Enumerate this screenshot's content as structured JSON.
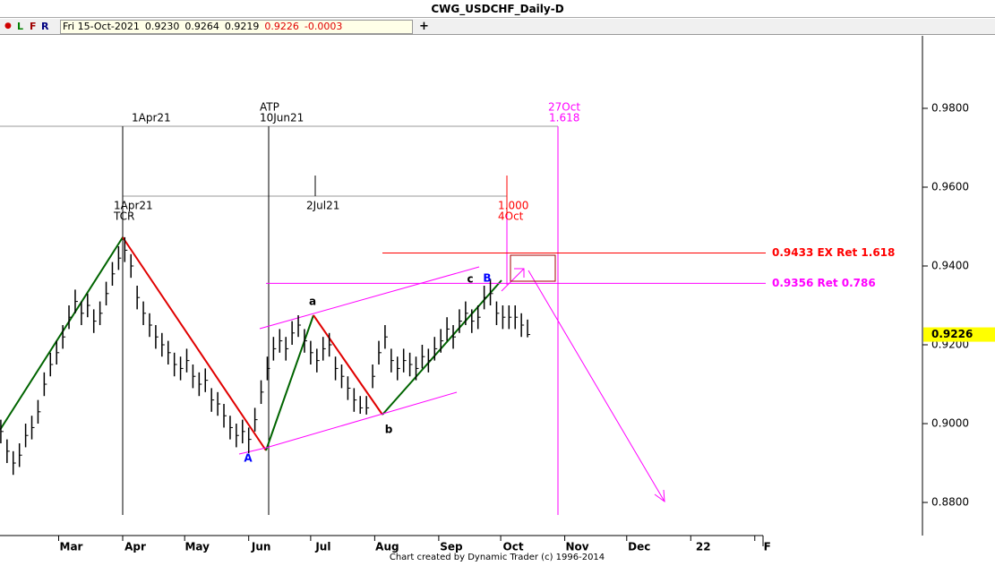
{
  "window_title": "CWG_USDCHF_Daily-D",
  "toolbar": {
    "letters": [
      "L",
      "F",
      "R"
    ],
    "quote": [
      "Fri 15-Oct-2021",
      "0.9230",
      "0.9264",
      "0.9219",
      "0.9226",
      "-0.0003"
    ]
  },
  "footer": "Chart created by Dynamic Trader  (c) 1996-2014",
  "chart_data": {
    "type": "ohlc",
    "color": "#000000",
    "x": [
      32,
      35,
      38,
      41,
      44,
      47,
      50,
      53,
      56,
      59,
      62,
      65,
      68,
      71,
      74,
      77,
      80,
      83,
      86,
      89,
      92,
      95,
      98,
      101,
      104,
      107,
      110,
      113,
      116,
      119,
      122,
      125,
      128,
      131,
      134,
      137,
      140,
      143,
      146,
      149,
      152,
      155,
      158,
      161,
      164,
      167,
      170,
      173,
      176,
      179,
      182,
      185,
      188,
      191,
      194,
      197,
      200,
      203,
      206,
      209,
      212,
      215,
      218,
      221,
      224,
      227,
      230,
      233,
      236,
      239,
      242,
      245,
      248,
      251,
      254,
      257,
      260,
      263,
      266,
      269,
      272,
      275,
      278,
      281,
      284,
      287
    ],
    "high": [
      0.901,
      0.896,
      0.893,
      0.895,
      0.9,
      0.902,
      0.906,
      0.913,
      0.918,
      0.921,
      0.925,
      0.93,
      0.934,
      0.931,
      0.933,
      0.929,
      0.931,
      0.936,
      0.941,
      0.945,
      0.9473,
      0.943,
      0.935,
      0.931,
      0.928,
      0.925,
      0.923,
      0.921,
      0.918,
      0.917,
      0.919,
      0.915,
      0.913,
      0.914,
      0.909,
      0.908,
      0.905,
      0.902,
      0.9,
      0.901,
      0.899,
      0.904,
      0.911,
      0.917,
      0.922,
      0.924,
      0.922,
      0.926,
      0.9275,
      0.924,
      0.921,
      0.919,
      0.922,
      0.923,
      0.917,
      0.915,
      0.912,
      0.909,
      0.907,
      0.907,
      0.915,
      0.921,
      0.925,
      0.919,
      0.917,
      0.919,
      0.918,
      0.917,
      0.92,
      0.919,
      0.922,
      0.924,
      0.927,
      0.925,
      0.929,
      0.931,
      0.929,
      0.93,
      0.935,
      0.9367,
      0.931,
      0.93,
      0.93,
      0.93,
      0.928,
      0.9264
    ],
    "low": [
      0.895,
      0.89,
      0.887,
      0.889,
      0.894,
      0.896,
      0.9,
      0.907,
      0.912,
      0.915,
      0.919,
      0.924,
      0.928,
      0.925,
      0.927,
      0.923,
      0.925,
      0.93,
      0.935,
      0.939,
      0.941,
      0.937,
      0.929,
      0.925,
      0.922,
      0.919,
      0.917,
      0.915,
      0.912,
      0.911,
      0.913,
      0.909,
      0.907,
      0.908,
      0.903,
      0.902,
      0.899,
      0.896,
      0.894,
      0.895,
      0.8925,
      0.898,
      0.905,
      0.911,
      0.916,
      0.918,
      0.916,
      0.92,
      0.922,
      0.918,
      0.915,
      0.913,
      0.916,
      0.917,
      0.911,
      0.909,
      0.906,
      0.903,
      0.9025,
      0.9023,
      0.909,
      0.915,
      0.919,
      0.913,
      0.911,
      0.913,
      0.912,
      0.911,
      0.914,
      0.913,
      0.916,
      0.918,
      0.921,
      0.919,
      0.923,
      0.925,
      0.923,
      0.924,
      0.929,
      0.93,
      0.925,
      0.924,
      0.924,
      0.924,
      0.922,
      0.9219
    ],
    "close": [
      0.898,
      0.893,
      0.89,
      0.892,
      0.897,
      0.899,
      0.903,
      0.91,
      0.915,
      0.918,
      0.922,
      0.927,
      0.931,
      0.928,
      0.93,
      0.926,
      0.928,
      0.933,
      0.938,
      0.942,
      0.944,
      0.94,
      0.932,
      0.928,
      0.925,
      0.922,
      0.92,
      0.918,
      0.915,
      0.914,
      0.916,
      0.912,
      0.91,
      0.911,
      0.906,
      0.905,
      0.902,
      0.899,
      0.897,
      0.898,
      0.896,
      0.901,
      0.908,
      0.914,
      0.919,
      0.921,
      0.919,
      0.923,
      0.925,
      0.921,
      0.918,
      0.916,
      0.919,
      0.92,
      0.914,
      0.912,
      0.909,
      0.906,
      0.904,
      0.904,
      0.912,
      0.918,
      0.922,
      0.916,
      0.914,
      0.916,
      0.915,
      0.914,
      0.917,
      0.916,
      0.919,
      0.921,
      0.924,
      0.922,
      0.926,
      0.928,
      0.926,
      0.927,
      0.932,
      0.933,
      0.928,
      0.927,
      0.927,
      0.927,
      0.925,
      0.9226
    ],
    "xlim": [
      31.6,
      401
    ],
    "xticks": [
      {
        "value": 60,
        "label": "Mar"
      },
      {
        "value": 91,
        "label": "Apr"
      },
      {
        "value": 121,
        "label": "May"
      },
      {
        "value": 152,
        "label": "Jun"
      },
      {
        "value": 182,
        "label": "Jul"
      },
      {
        "value": 213,
        "label": "Aug"
      },
      {
        "value": 244,
        "label": "Sep"
      },
      {
        "value": 274,
        "label": "Oct"
      },
      {
        "value": 305,
        "label": "Nov"
      },
      {
        "value": 335,
        "label": "Dec"
      },
      {
        "value": 366,
        "label": "22"
      },
      {
        "value": 397,
        "label": "F"
      }
    ],
    "ylim": [
      0.8716,
      0.9984
    ],
    "yticks": [
      {
        "value": 0.88,
        "label": "0.8800"
      },
      {
        "value": 0.9,
        "label": "0.9000"
      },
      {
        "value": 0.92,
        "label": "0.9200"
      },
      {
        "value": 0.94,
        "label": "0.9400"
      },
      {
        "value": 0.96,
        "label": "0.9600"
      },
      {
        "value": 0.98,
        "label": "0.9800"
      }
    ],
    "last_price": {
      "value": 0.9226,
      "label": "0.9226",
      "color": "#ffff00"
    },
    "levels": [
      {
        "value": 0.9433,
        "label": "0.9433 EX Ret 1.618",
        "color": "#ff0000"
      },
      {
        "value": 0.9356,
        "label": "0.9356 Ret 0.786",
        "color": "#ff00ff"
      }
    ],
    "annotations": [
      "1Apr21",
      "ATP",
      "10Jun21",
      "27Oct",
      "1.618",
      "1Apr21",
      "TCR",
      "2Jul21",
      "1.000",
      "4Oct",
      "a",
      "b",
      "c",
      "A",
      "B"
    ]
  }
}
